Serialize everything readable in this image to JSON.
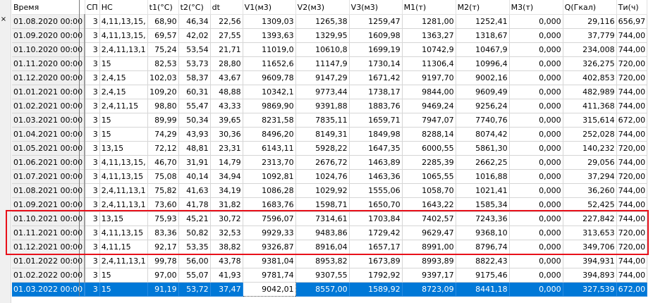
{
  "window": {
    "close_glyph": "×",
    "close_icon": "close-icon"
  },
  "table": {
    "columns": [
      "Время",
      "СП",
      "НС",
      "t1(°C)",
      "t2(°C)",
      "dt",
      "V1(м3)",
      "V2(м3)",
      "V3(м3)",
      "M1(т)",
      "M2(т)",
      "M3(т)",
      "Q(Гкал)",
      "Ти(ч)"
    ],
    "rows": [
      [
        "01.08.2020 00:00",
        "3",
        "4,11,13,15,",
        "68,90",
        "46,34",
        "22,56",
        "1309,03",
        "1265,38",
        "1259,47",
        "1281,00",
        "1252,41",
        "0,000",
        "29,116",
        "656,97"
      ],
      [
        "01.09.2020 00:00",
        "3",
        "4,11,13,15,",
        "69,57",
        "42,02",
        "27,55",
        "1393,63",
        "1329,95",
        "1609,98",
        "1363,27",
        "1318,67",
        "0,000",
        "37,779",
        "744,00"
      ],
      [
        "01.10.2020 00:00",
        "3",
        "2,4,11,13,1",
        "75,24",
        "53,54",
        "21,71",
        "11019,0",
        "10610,8",
        "1699,19",
        "10742,9",
        "10467,9",
        "0,000",
        "234,008",
        "744,00"
      ],
      [
        "01.11.2020 00:00",
        "3",
        "15",
        "82,53",
        "53,73",
        "28,80",
        "11652,6",
        "11147,9",
        "1730,14",
        "11306,4",
        "10996,4",
        "0,000",
        "326,275",
        "720,00"
      ],
      [
        "01.12.2020 00:00",
        "3",
        "2,4,15",
        "102,03",
        "58,37",
        "43,67",
        "9609,78",
        "9147,29",
        "1671,42",
        "9197,70",
        "9002,16",
        "0,000",
        "402,853",
        "720,00"
      ],
      [
        "01.01.2021 00:00",
        "3",
        "2,4,15",
        "109,20",
        "60,31",
        "48,88",
        "10342,1",
        "9773,44",
        "1738,17",
        "9844,00",
        "9609,49",
        "0,000",
        "482,989",
        "744,00"
      ],
      [
        "01.02.2021 00:00",
        "3",
        "2,4,11,15",
        "98,80",
        "55,47",
        "43,33",
        "9869,90",
        "9391,88",
        "1883,76",
        "9469,24",
        "9256,24",
        "0,000",
        "411,368",
        "744,00"
      ],
      [
        "01.03.2021 00:00",
        "3",
        "15",
        "89,99",
        "50,34",
        "39,65",
        "8231,58",
        "7835,11",
        "1659,71",
        "7947,07",
        "7740,76",
        "0,000",
        "315,614",
        "672,00"
      ],
      [
        "01.04.2021 00:00",
        "3",
        "15",
        "74,29",
        "43,93",
        "30,36",
        "8496,20",
        "8149,31",
        "1849,98",
        "8288,14",
        "8074,42",
        "0,000",
        "252,028",
        "744,00"
      ],
      [
        "01.05.2021 00:00",
        "3",
        "13,15",
        "72,12",
        "48,81",
        "23,31",
        "6143,11",
        "5928,22",
        "1647,35",
        "6000,55",
        "5861,30",
        "0,000",
        "140,232",
        "720,00"
      ],
      [
        "01.06.2021 00:00",
        "3",
        "4,11,13,15,",
        "46,70",
        "31,91",
        "14,79",
        "2313,70",
        "2676,72",
        "1463,89",
        "2285,39",
        "2662,25",
        "0,000",
        "29,056",
        "744,00"
      ],
      [
        "01.07.2021 00:00",
        "3",
        "4,11,13,15",
        "75,08",
        "40,14",
        "34,94",
        "1092,81",
        "1024,76",
        "1463,36",
        "1065,55",
        "1016,88",
        "0,000",
        "37,294",
        "720,00"
      ],
      [
        "01.08.2021 00:00",
        "3",
        "2,4,11,13,1",
        "75,82",
        "41,63",
        "34,19",
        "1086,28",
        "1029,92",
        "1555,06",
        "1058,70",
        "1021,41",
        "0,000",
        "36,260",
        "744,00"
      ],
      [
        "01.09.2021 00:00",
        "3",
        "2,4,11,13,1",
        "73,60",
        "41,78",
        "31,82",
        "1683,76",
        "1598,71",
        "1650,70",
        "1643,22",
        "1585,34",
        "0,000",
        "52,425",
        "744,00"
      ],
      [
        "01.10.2021 00:00",
        "3",
        "13,15",
        "75,93",
        "45,21",
        "30,72",
        "7596,07",
        "7314,61",
        "1703,84",
        "7402,57",
        "7243,36",
        "0,000",
        "227,842",
        "744,00"
      ],
      [
        "01.11.2021 00:00",
        "3",
        "4,11,13,15",
        "83,36",
        "50,82",
        "32,53",
        "9929,33",
        "9483,86",
        "1729,42",
        "9629,47",
        "9368,10",
        "0,000",
        "313,653",
        "720,00"
      ],
      [
        "01.12.2021 00:00",
        "3",
        "4,11,15",
        "92,17",
        "53,35",
        "38,82",
        "9326,87",
        "8916,04",
        "1657,17",
        "8991,00",
        "8796,74",
        "0,000",
        "349,706",
        "720,00"
      ],
      [
        "01.01.2022 00:00",
        "3",
        "2,4,11,13,1",
        "99,78",
        "56,00",
        "43,78",
        "9381,04",
        "8953,82",
        "1673,89",
        "8993,89",
        "8822,43",
        "0,000",
        "394,931",
        "744,00"
      ],
      [
        "01.02.2022 00:00",
        "3",
        "15",
        "97,00",
        "55,07",
        "41,93",
        "9781,74",
        "9307,55",
        "1792,92",
        "9397,17",
        "9175,46",
        "0,000",
        "394,893",
        "744,00"
      ],
      [
        "01.03.2022 00:00",
        "3",
        "15",
        "91,19",
        "53,72",
        "37,47",
        "9042,01",
        "8557,00",
        "1589,92",
        "8723,09",
        "8441,18",
        "0,000",
        "327,539",
        "672,00"
      ]
    ],
    "selected_row_index": 19,
    "focused_column_index": 6,
    "highlighted_rows": [
      14,
      15,
      16
    ],
    "highlight_color": "#e8101a",
    "selection_color": "#0078d7"
  }
}
